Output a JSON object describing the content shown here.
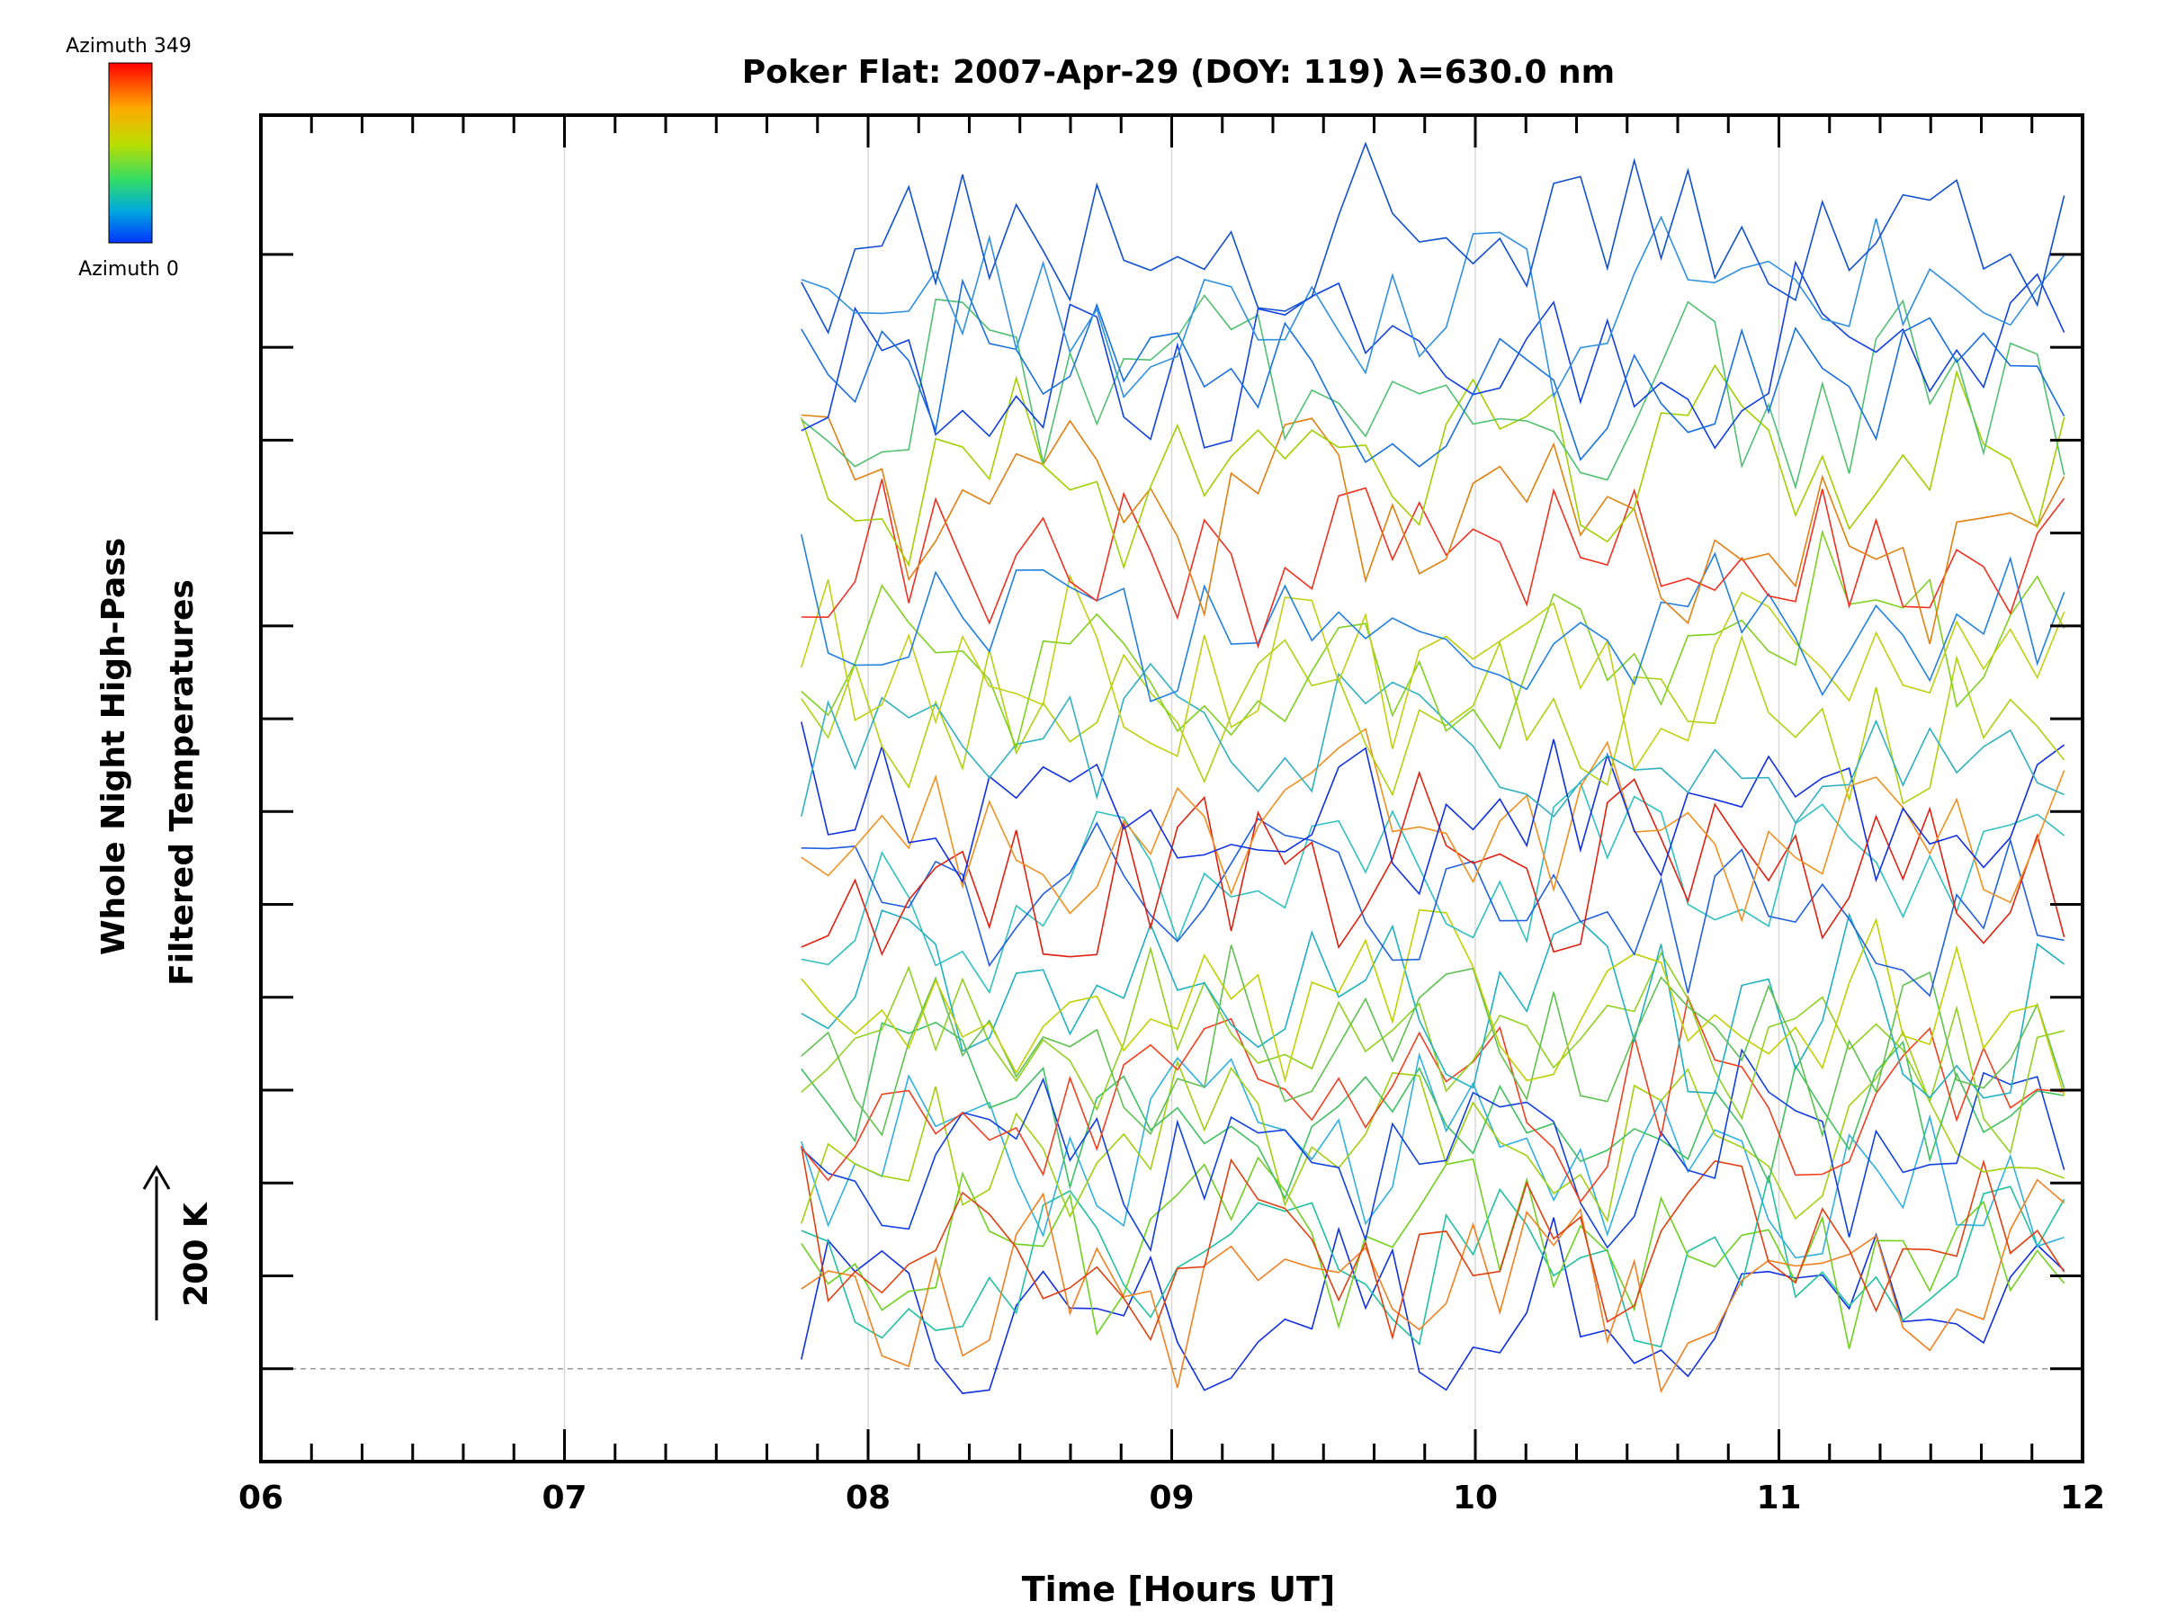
{
  "chart_data": {
    "type": "line",
    "title": "Poker Flat: 2007-Apr-29 (DOY: 119) λ=630.0 nm",
    "xlabel": "Time [Hours UT]",
    "ylabel_line1": "Whole Night High-Pass",
    "ylabel_line2": "Filtered Temperatures",
    "scale_label": "200 K",
    "xlim": [
      6,
      12
    ],
    "x_ticks": [
      "06",
      "07",
      "08",
      "09",
      "10",
      "11",
      "12"
    ],
    "x_tick_values": [
      6,
      7,
      8,
      9,
      10,
      11,
      12
    ],
    "ylim": [
      -1.0,
      13.5
    ],
    "y_offsets": [
      0,
      1,
      2,
      3,
      4,
      5,
      6,
      7,
      8,
      9,
      10,
      11,
      12
    ],
    "baseline_offset": 0,
    "colorbar": {
      "top_label": "Azimuth 349",
      "bottom_label": "Azimuth 0",
      "colors": [
        "#ff0000",
        "#ff8800",
        "#ccdd00",
        "#44dd44",
        "#00bbcc",
        "#0044ff"
      ]
    },
    "data_range": {
      "x_start": 7.78,
      "x_end": 11.95,
      "x_step": 0.0885
    },
    "groups": [
      {
        "base": 0.3,
        "color_set": [
          "#1030e0",
          "#20c0a0",
          "#70d020",
          "#30b0e0"
        ]
      },
      {
        "base": 1.2,
        "color_set": [
          "#f08020",
          "#e04010",
          "#a0d010",
          "#40c060"
        ]
      },
      {
        "base": 2.6,
        "color_set": [
          "#1040e0",
          "#f04020",
          "#90d020",
          "#20b0c0"
        ]
      },
      {
        "base": 3.6,
        "color_set": [
          "#60c050",
          "#c0d000",
          "#30c0c0",
          "#2060e0"
        ]
      },
      {
        "base": 5.3,
        "color_set": [
          "#e02010",
          "#f09020",
          "#1030e0",
          "#b0d010"
        ]
      },
      {
        "base": 6.6,
        "color_set": [
          "#30b0c0",
          "#80d020",
          "#c0d010",
          "#2080e0"
        ]
      },
      {
        "base": 8.7,
        "color_set": [
          "#f03020",
          "#e08010",
          "#a0d000",
          "#50c070"
        ]
      },
      {
        "base": 10.4,
        "color_set": [
          "#1040e0",
          "#1870e0",
          "#3090e0",
          "#1050d0"
        ]
      }
    ],
    "series_count": 32
  }
}
